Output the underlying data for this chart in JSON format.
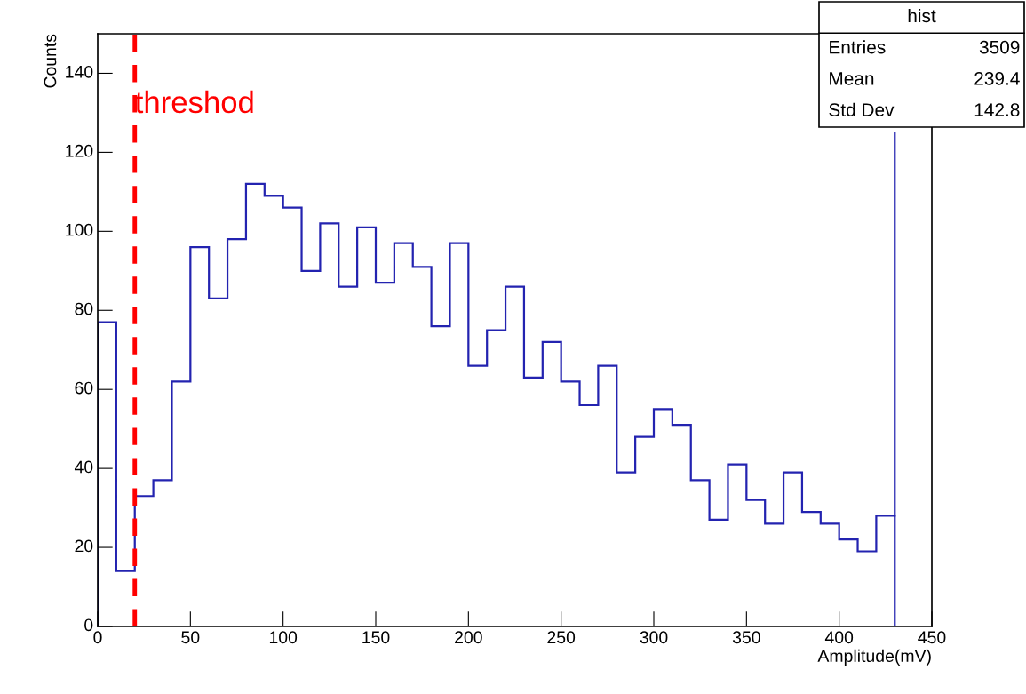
{
  "chart_data": {
    "type": "histogram",
    "xlabel": "Amplitude(mV)",
    "ylabel": "Counts",
    "bins": [
      0,
      10,
      20,
      30,
      40,
      50,
      60,
      70,
      80,
      90,
      100,
      110,
      120,
      130,
      140,
      150,
      160,
      170,
      180,
      190,
      200,
      210,
      220,
      230,
      240,
      250,
      260,
      270,
      280,
      290,
      300,
      310,
      320,
      330,
      340,
      350,
      360,
      370,
      380,
      390,
      400,
      410,
      420,
      430
    ],
    "values": [
      77,
      14,
      33,
      37,
      62,
      96,
      83,
      98,
      112,
      109,
      106,
      90,
      102,
      86,
      101,
      87,
      97,
      91,
      76,
      97,
      66,
      75,
      86,
      63,
      72,
      62,
      56,
      66,
      39,
      48,
      55,
      51,
      37,
      27,
      41,
      32,
      26,
      39,
      29,
      26,
      22,
      19,
      28
    ],
    "color": "#2323b0",
    "series": [
      {
        "type": "line",
        "color": "#2323b0",
        "x": [
          430,
          430
        ],
        "values": [
          28,
          125
        ]
      }
    ],
    "xlim": [
      0,
      450
    ],
    "xticks": [
      0,
      50,
      100,
      150,
      200,
      250,
      300,
      350,
      400,
      450
    ],
    "ylim": [
      0,
      150
    ],
    "yticks": [
      0,
      20,
      40,
      60,
      80,
      100,
      120,
      140
    ],
    "ref_lines": [
      {
        "axis": "x",
        "value": 20,
        "label": "threshod",
        "color": "#ff0000",
        "line_style": "dashed"
      }
    ],
    "annotations": [
      "hist",
      "Entries",
      "3509",
      "Mean",
      "239.4",
      "Std Dev",
      "142.8"
    ],
    "grid": false,
    "legend": false
  }
}
